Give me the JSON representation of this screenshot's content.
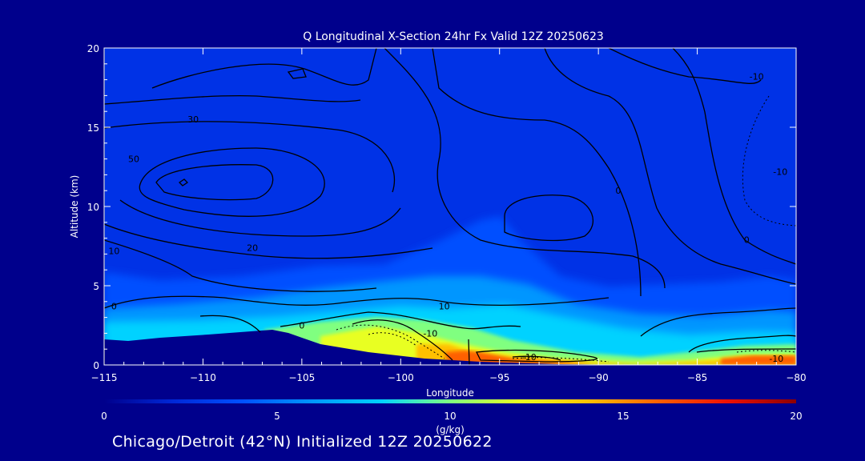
{
  "chart_data": {
    "type": "heatmap",
    "title": "Q Longitudinal X-Section 24hr  Fx Valid 12Z 20250623",
    "xlabel": "Longitude",
    "ylabel": "Altitude (km)",
    "xlim": [
      -115,
      -80
    ],
    "ylim": [
      0,
      20
    ],
    "x_ticks": [
      -115,
      -110,
      -105,
      -100,
      -95,
      -90,
      -85,
      -80
    ],
    "y_ticks": [
      0,
      5,
      10,
      15,
      20
    ],
    "colorbar": {
      "label": "(g/kg)",
      "range": [
        0,
        20
      ],
      "ticks": [
        0,
        5,
        10,
        15,
        20
      ],
      "colors": [
        "#00008c",
        "#0032ff",
        "#00a0ff",
        "#40e0d0",
        "#ffff00",
        "#ff8000",
        "#ff0000",
        "#8b0000"
      ]
    },
    "fill_color_stops": [
      {
        "q": 0,
        "color": "#00008c"
      },
      {
        "q": 2,
        "color": "#0028d8"
      },
      {
        "q": 4,
        "color": "#0050ff"
      },
      {
        "q": 6,
        "color": "#0096ff"
      },
      {
        "q": 8,
        "color": "#00d2ff"
      },
      {
        "q": 10,
        "color": "#80ff80"
      },
      {
        "q": 12,
        "color": "#e8ff20"
      },
      {
        "q": 14,
        "color": "#ffc000"
      },
      {
        "q": 16,
        "color": "#ff6000"
      },
      {
        "q": 18,
        "color": "#f01000"
      },
      {
        "q": 20,
        "color": "#8b0000"
      }
    ],
    "terrain_note": "terrain shown in background color below surface",
    "contour_labels": [
      {
        "text": "-10",
        "x": -98.5,
        "y": 1.8
      },
      {
        "text": "-10",
        "x": -93.5,
        "y": 0.3
      },
      {
        "text": "0",
        "x": -105,
        "y": 2.3
      },
      {
        "text": "10",
        "x": -97.8,
        "y": 3.5
      },
      {
        "text": "0",
        "x": -114.5,
        "y": 3.5
      },
      {
        "text": "10",
        "x": -114.5,
        "y": 7.0
      },
      {
        "text": "20",
        "x": -107.5,
        "y": 7.2
      },
      {
        "text": "50",
        "x": -113.5,
        "y": 12.8
      },
      {
        "text": "30",
        "x": -110.5,
        "y": 15.3
      },
      {
        "text": "0",
        "x": -89,
        "y": 10.8
      },
      {
        "text": "0",
        "x": -82.5,
        "y": 7.7
      },
      {
        "text": "-10",
        "x": -81,
        "y": 0.2
      },
      {
        "text": "-10",
        "x": -80.8,
        "y": 12.0
      },
      {
        "text": "-10",
        "x": -82,
        "y": 18.0
      }
    ]
  },
  "footer": {
    "text": "Chicago/Detroit (42°N) Initialized 12Z 20250622"
  }
}
